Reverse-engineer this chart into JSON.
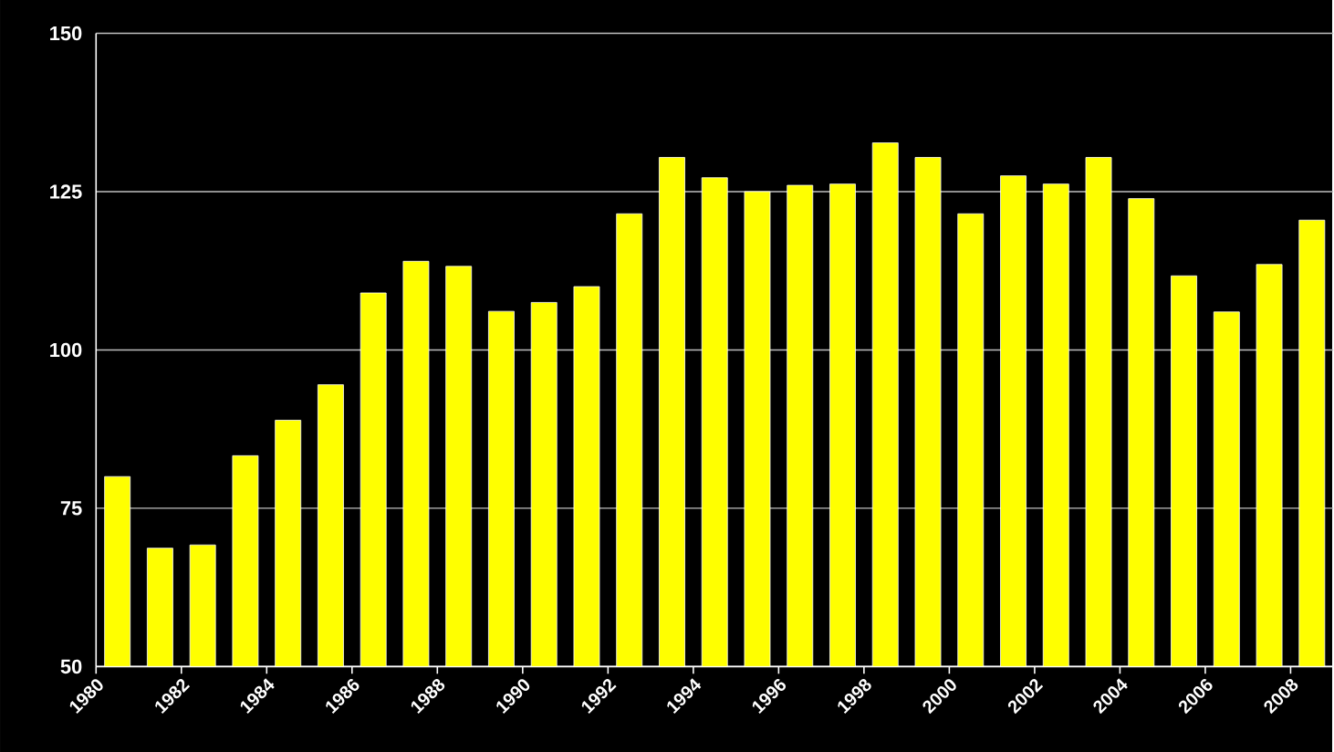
{
  "chart_data": {
    "type": "bar",
    "categories": [
      "1980",
      null,
      "1982",
      null,
      "1984",
      null,
      "1986",
      null,
      "1988",
      null,
      "1990",
      null,
      "1992",
      null,
      "1994",
      null,
      "1996",
      null,
      "1998",
      null,
      "2000",
      null,
      "2002",
      null,
      "2004",
      null,
      "2006",
      null,
      "2008"
    ],
    "values": [
      80,
      68.7,
      69.2,
      83.3,
      88.9,
      94.5,
      109,
      114,
      113.2,
      106.1,
      107.5,
      110,
      121.5,
      130.4,
      127.2,
      125,
      126,
      126.2,
      132.7,
      130.4,
      121.5,
      127.5,
      126.2,
      130.4,
      123.9,
      111.7,
      106,
      113.5,
      120.5
    ],
    "color": "#ffff00",
    "ylim": [
      50,
      150
    ],
    "yticks": [
      50,
      75,
      100,
      125,
      150
    ],
    "grid": "y"
  }
}
